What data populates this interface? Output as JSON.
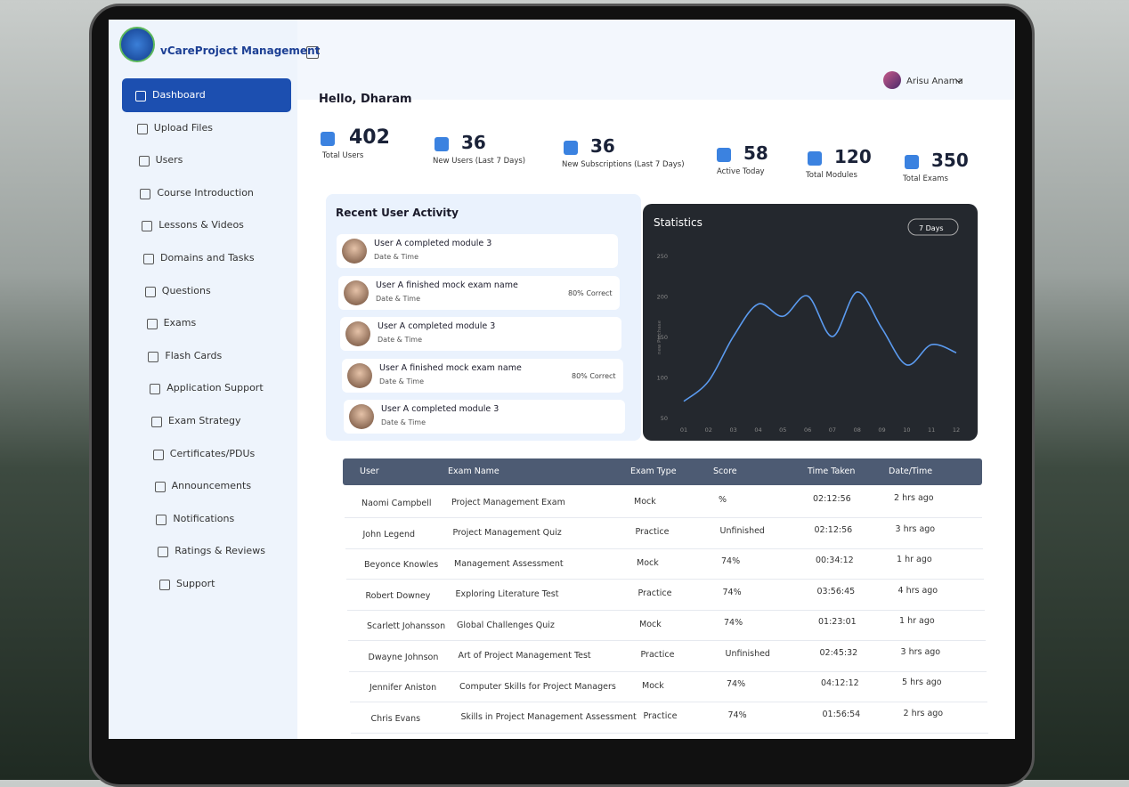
{
  "brand": "vCareProject Management",
  "header": {
    "user": "Arisu Anama"
  },
  "sidebar": {
    "items": [
      "Dashboard",
      "Upload Files",
      "Users",
      "Course Introduction",
      "Lessons & Videos",
      "Domains and Tasks",
      "Questions",
      "Exams",
      "Flash Cards",
      "Application Support",
      "Exam Strategy",
      "Certificates/PDUs",
      "Announcements",
      "Notifications",
      "Ratings & Reviews",
      "Support"
    ]
  },
  "greeting": "Hello, Dharam",
  "stats": [
    {
      "value": 402,
      "label": "Total Users"
    },
    {
      "value": 36,
      "label": "New Users (Last 7 Days)"
    },
    {
      "value": 36,
      "label": "New Subscriptions (Last 7 Days)"
    },
    {
      "value": 58,
      "label": "Active Today"
    },
    {
      "value": 120,
      "label": "Total Modules"
    },
    {
      "value": 350,
      "label": "Total Exams"
    }
  ],
  "activity": {
    "title": "Recent User Activity",
    "items": [
      {
        "text": "User A completed module 3",
        "sub": "Date & Time"
      },
      {
        "text": "User A finished mock exam name",
        "sub": "Date & Time",
        "extra": "80% Correct"
      },
      {
        "text": "User A completed module 3",
        "sub": "Date & Time"
      },
      {
        "text": "User A finished mock exam name",
        "sub": "Date & Time",
        "extra": "80% Correct"
      },
      {
        "text": "User A completed module 3",
        "sub": "Date & Time"
      }
    ]
  },
  "statistics": {
    "title": "Statistics",
    "range_button": "7 Days",
    "y_label": "new Purchase",
    "categories": [
      "01",
      "02",
      "03",
      "04",
      "05",
      "06",
      "07",
      "08",
      "09",
      "10",
      "11",
      "12"
    ],
    "values": [
      70,
      95,
      150,
      190,
      175,
      200,
      150,
      205,
      160,
      115,
      140,
      130
    ],
    "ylim": [
      50,
      250
    ],
    "yticks": [
      50,
      100,
      150,
      200,
      250
    ]
  },
  "table": {
    "headers": [
      "User",
      "Exam Name",
      "Exam Type",
      "Score",
      "Time Taken",
      "Date/Time"
    ],
    "rows": [
      [
        "Naomi Campbell",
        "Project Management Exam",
        "Mock",
        "%",
        "02:12:56",
        "2 hrs ago"
      ],
      [
        "John Legend",
        "Project Management Quiz",
        "Practice",
        "Unfinished",
        "02:12:56",
        "3 hrs ago"
      ],
      [
        "Beyonce Knowles",
        "Management Assessment",
        "Mock",
        "74%",
        "00:34:12",
        "1 hr ago"
      ],
      [
        "Robert Downey",
        "Exploring Literature Test",
        "Practice",
        "74%",
        "03:56:45",
        "4 hrs ago"
      ],
      [
        "Scarlett Johansson",
        "Global Challenges Quiz",
        "Mock",
        "74%",
        "01:23:01",
        "1 hr ago"
      ],
      [
        "Dwayne Johnson",
        "Art of Project Management Test",
        "Practice",
        "Unfinished",
        "02:45:32",
        "3 hrs ago"
      ],
      [
        "Jennifer Aniston",
        "Computer Skills for Project Managers",
        "Mock",
        "74%",
        "04:12:12",
        "5 hrs ago"
      ],
      [
        "Chris Evans",
        "Skills in Project Management Assessment",
        "Practice",
        "74%",
        "01:56:54",
        "2 hrs ago"
      ]
    ]
  }
}
